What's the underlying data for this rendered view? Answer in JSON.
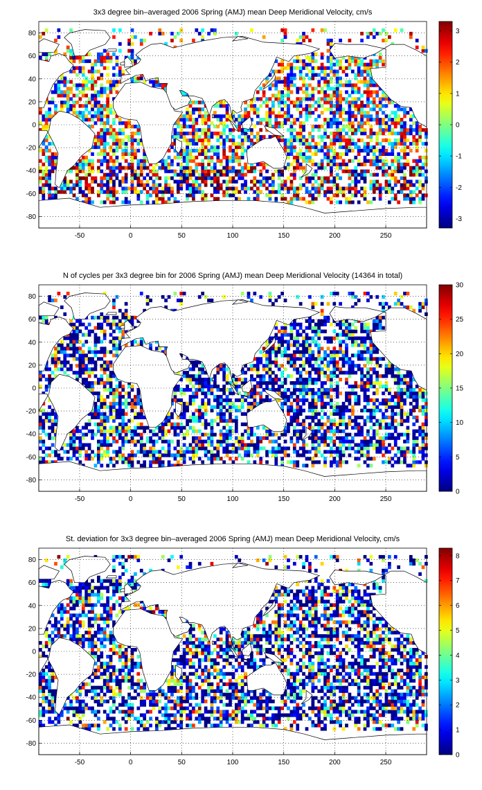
{
  "chart_data": [
    {
      "type": "heatmap",
      "title": "3x3 degree bin–averaged 2006 Spring (AMJ) mean Deep Meridional Velocity, cm/s",
      "xlabel": "",
      "ylabel": "",
      "xlim": [
        -90,
        290
      ],
      "ylim": [
        -90,
        90
      ],
      "xticks": [
        -50,
        0,
        50,
        100,
        150,
        200,
        250
      ],
      "yticks": [
        80,
        60,
        40,
        20,
        0,
        -20,
        -40,
        -60,
        -80
      ],
      "colorbar": {
        "min": -3.3,
        "max": 3.3,
        "ticks": [
          3,
          2,
          1,
          0,
          -1,
          -2,
          -3
        ],
        "colormap": "jet",
        "placement": "right"
      },
      "grid": true,
      "bin_size_deg": 3,
      "value_scale": 3.3,
      "seed": 11,
      "centered": true
    },
    {
      "type": "heatmap",
      "title": "N of cycles per 3x3 degree bin for 2006 Spring (AMJ) mean Deep Meridional Velocity (14364 in total)",
      "xlabel": "",
      "ylabel": "",
      "xlim": [
        -90,
        290
      ],
      "ylim": [
        -90,
        90
      ],
      "xticks": [
        -50,
        0,
        50,
        100,
        150,
        200,
        250
      ],
      "yticks": [
        80,
        60,
        40,
        20,
        0,
        -20,
        -40,
        -60,
        -80
      ],
      "colorbar": {
        "min": 0,
        "max": 30,
        "ticks": [
          30,
          25,
          20,
          15,
          10,
          5,
          0
        ],
        "colormap": "jet",
        "placement": "right"
      },
      "grid": true,
      "bin_size_deg": 3,
      "value_scale": 30,
      "seed": 23,
      "centered": false
    },
    {
      "type": "heatmap",
      "title": "St. deviation for 3x3 degree bin–averaged 2006 Spring (AMJ) mean Deep Meridional Velocity, cm/s",
      "xlabel": "",
      "ylabel": "",
      "xlim": [
        -90,
        290
      ],
      "ylim": [
        -90,
        90
      ],
      "xticks": [
        -50,
        0,
        50,
        100,
        150,
        200,
        250
      ],
      "yticks": [
        80,
        60,
        40,
        20,
        0,
        -20,
        -40,
        -60,
        -80
      ],
      "colorbar": {
        "min": 0,
        "max": 8.3,
        "ticks": [
          8,
          7,
          6,
          5,
          4,
          3,
          2,
          1,
          0
        ],
        "colormap": "jet",
        "placement": "right"
      },
      "grid": true,
      "bin_size_deg": 3,
      "value_scale": 8.3,
      "seed": 37,
      "centered": false
    }
  ]
}
